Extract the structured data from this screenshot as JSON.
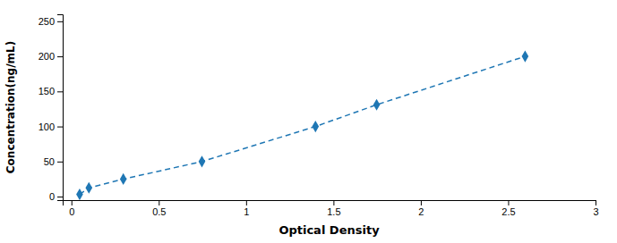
{
  "chart_data": {
    "type": "line",
    "x": [
      0.047,
      0.1,
      0.297,
      0.747,
      1.397,
      1.747,
      2.597
    ],
    "values": [
      3.13,
      12.5,
      25.0,
      50.0,
      100.0,
      131.0,
      200.0
    ],
    "marker": "diamond",
    "line_style": "dashed",
    "xlabel": "Optical Density",
    "ylabel": "Concentration(ng/mL)",
    "xlim": [
      -0.05,
      3.0
    ],
    "ylim": [
      -5,
      260
    ],
    "xticks": [
      0,
      0.5,
      1,
      1.5,
      2,
      2.5,
      3
    ],
    "yticks": [
      0,
      50,
      100,
      150,
      200,
      250
    ],
    "grid": false
  }
}
